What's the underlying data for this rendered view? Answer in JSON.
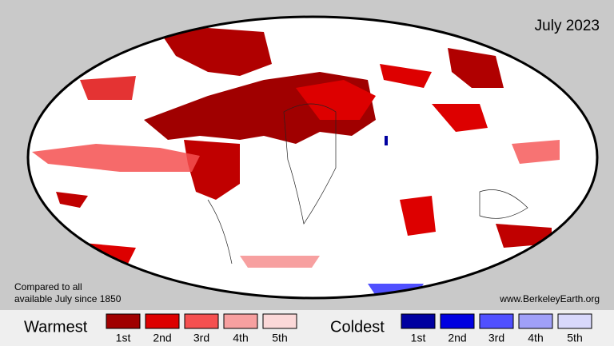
{
  "header": {
    "title": "July 2023"
  },
  "note": [
    "Compared to all",
    "available July since 1850"
  ],
  "source": "www.BerkeleyEarth.org",
  "legend": {
    "warm": {
      "label": "Warmest",
      "items": [
        {
          "label": "1st",
          "color": "#a00000"
        },
        {
          "label": "2nd",
          "color": "#dd0000"
        },
        {
          "label": "3rd",
          "color": "#f55050"
        },
        {
          "label": "4th",
          "color": "#f7a0a0"
        },
        {
          "label": "5th",
          "color": "#fbd8d8"
        }
      ]
    },
    "cold": {
      "label": "Coldest",
      "items": [
        {
          "label": "1st",
          "color": "#0000a0"
        },
        {
          "label": "2nd",
          "color": "#0000e0"
        },
        {
          "label": "3rd",
          "color": "#5050ff"
        },
        {
          "label": "4th",
          "color": "#a0a0f8"
        },
        {
          "label": "5th",
          "color": "#d8d8fb"
        }
      ]
    }
  }
}
